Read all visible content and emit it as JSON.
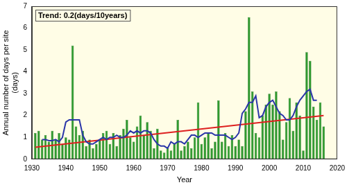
{
  "chart_data": {
    "type": "bar",
    "annotation": "Trend: 0.2(days/10years)",
    "xlabel": "Year",
    "ylabel": [
      "Annual number of days per site",
      "(days)"
    ],
    "x": [
      1931,
      1932,
      1933,
      1934,
      1935,
      1936,
      1937,
      1938,
      1939,
      1940,
      1941,
      1942,
      1943,
      1944,
      1945,
      1946,
      1947,
      1948,
      1949,
      1950,
      1951,
      1952,
      1953,
      1954,
      1955,
      1956,
      1957,
      1958,
      1959,
      1960,
      1961,
      1962,
      1963,
      1964,
      1965,
      1966,
      1967,
      1968,
      1969,
      1970,
      1971,
      1972,
      1973,
      1974,
      1975,
      1976,
      1977,
      1978,
      1979,
      1980,
      1981,
      1982,
      1983,
      1984,
      1985,
      1986,
      1987,
      1988,
      1989,
      1990,
      1991,
      1992,
      1993,
      1994,
      1995,
      1996,
      1997,
      1998,
      1999,
      2000,
      2001,
      2002,
      2003,
      2004,
      2005,
      2006,
      2007,
      2008,
      2009,
      2010,
      2011,
      2012,
      2013,
      2014,
      2015,
      2016
    ],
    "series": [
      {
        "type": "bar",
        "color": "#2f9a2f",
        "values": [
          1.2,
          1.3,
          0.9,
          1.1,
          0.8,
          1.3,
          0.9,
          1.2,
          0.7,
          1.0,
          0.9,
          5.2,
          1.5,
          1.1,
          1.3,
          0.6,
          0.9,
          0.5,
          0.7,
          0.9,
          1.2,
          1.3,
          0.7,
          1.2,
          0.6,
          1.1,
          1.4,
          1.8,
          1.0,
          0.8,
          1.5,
          2.0,
          1.1,
          1.7,
          1.3,
          0.5,
          1.4,
          0.4,
          0.3,
          0.5,
          0.4,
          0.7,
          1.8,
          0.4,
          0.6,
          0.8,
          0.5,
          1.0,
          2.6,
          0.7,
          1.0,
          1.2,
          0.5,
          0.8,
          2.7,
          0.8,
          1.2,
          0.6,
          1.1,
          0.6,
          0.9,
          0.6,
          2.2,
          6.5,
          3.1,
          1.2,
          1.0,
          2.0,
          2.5,
          3.0,
          2.5,
          3.1,
          2.2,
          0.9,
          1.7,
          2.8,
          1.3,
          2.6,
          2.0,
          0.4,
          4.9,
          4.5,
          2.4,
          1.8,
          2.6,
          1.5
        ]
      },
      {
        "type": "line",
        "color": "#2a35a8",
        "values": [
          null,
          null,
          0.9,
          0.9,
          0.85,
          0.85,
          0.9,
          0.8,
          1.0,
          1.7,
          1.8,
          1.8,
          1.8,
          1.8,
          1.1,
          0.8,
          0.7,
          0.7,
          0.8,
          0.9,
          1.0,
          0.9,
          1.0,
          1.0,
          1.1,
          1.0,
          1.0,
          1.1,
          1.3,
          1.2,
          1.3,
          1.2,
          1.3,
          1.3,
          1.2,
          0.9,
          0.7,
          0.6,
          0.6,
          0.5,
          0.8,
          0.7,
          0.8,
          0.8,
          0.7,
          0.9,
          1.1,
          1.1,
          1.0,
          1.1,
          1.2,
          1.2,
          1.2,
          1.1,
          1.1,
          1.1,
          1.1,
          1.0,
          0.9,
          1.0,
          1.2,
          2.1,
          2.3,
          2.6,
          2.6,
          2.9,
          1.9,
          2.0,
          2.4,
          2.6,
          2.7,
          2.4,
          2.1,
          2.0,
          1.8,
          1.8,
          2.0,
          2.4,
          2.7,
          2.9,
          3.1,
          3.2,
          2.7,
          2.7,
          null,
          null
        ]
      },
      {
        "type": "line",
        "color": "#dd2020",
        "values": [
          0.55,
          null,
          null,
          null,
          null,
          null,
          null,
          null,
          null,
          null,
          null,
          null,
          null,
          null,
          null,
          null,
          null,
          null,
          null,
          null,
          null,
          null,
          null,
          null,
          null,
          null,
          null,
          null,
          null,
          null,
          null,
          null,
          null,
          null,
          null,
          null,
          null,
          null,
          null,
          null,
          null,
          null,
          null,
          null,
          null,
          null,
          null,
          null,
          null,
          null,
          null,
          null,
          null,
          null,
          null,
          null,
          null,
          null,
          null,
          null,
          null,
          null,
          null,
          null,
          null,
          null,
          null,
          null,
          null,
          null,
          null,
          null,
          null,
          null,
          null,
          null,
          null,
          null,
          null,
          null,
          null,
          null,
          null,
          null,
          null,
          2.0
        ]
      }
    ],
    "xlim": [
      1930,
      2020
    ],
    "xticks": [
      1930,
      1940,
      1950,
      1960,
      1970,
      1980,
      1990,
      2000,
      2010,
      2020
    ],
    "ylim": [
      0,
      7
    ],
    "yticks": [
      0,
      1,
      2,
      3,
      4,
      5,
      6,
      7
    ],
    "grid": false
  }
}
